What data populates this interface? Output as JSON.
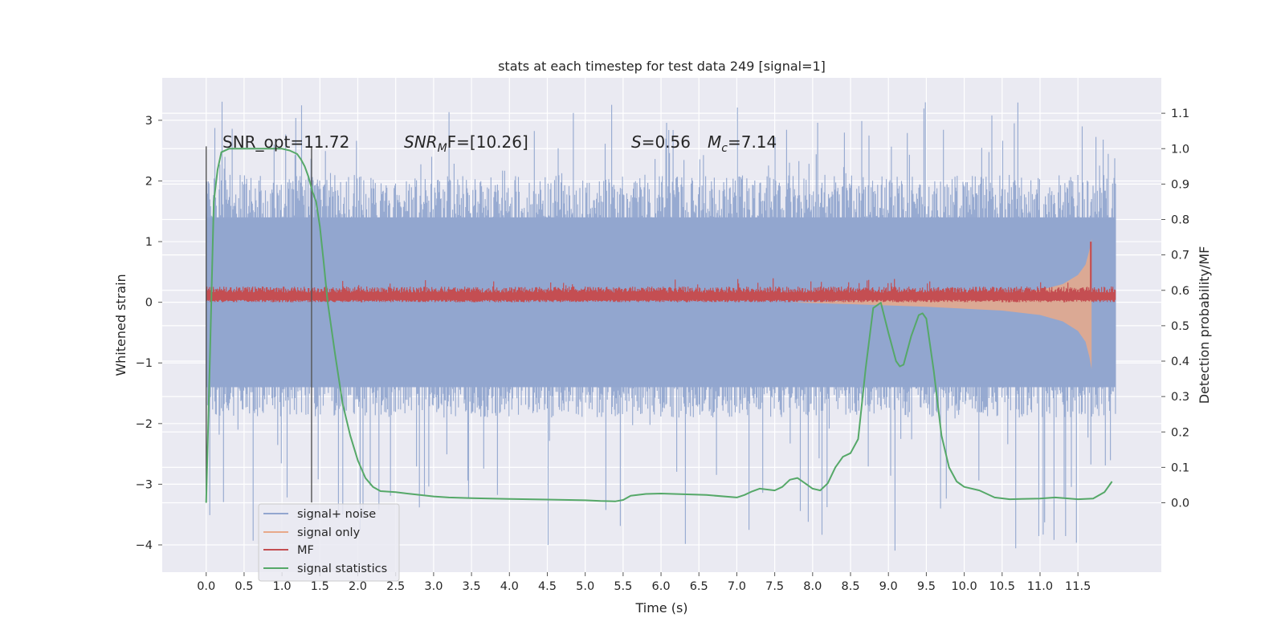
{
  "chart_data": {
    "type": "line",
    "title": "stats at each timestep for test data 249 [signal=1]",
    "xlabel": "Time (s)",
    "ylabel": "Whitened strain",
    "ylabel_right": "Detection probability/MF",
    "xlim": [
      -0.58,
      12.6
    ],
    "ylim": [
      -4.45,
      3.7
    ],
    "ylim_right": [
      -0.196,
      1.2
    ],
    "xticks": [
      "0.0",
      "0.5",
      "1.0",
      "1.5",
      "2.0",
      "2.5",
      "3.0",
      "3.5",
      "4.0",
      "4.5",
      "5.0",
      "5.5",
      "6.0",
      "6.5",
      "7.0",
      "7.5",
      "8.0",
      "8.5",
      "9.0",
      "9.5",
      "10.0",
      "10.5",
      "11.0",
      "11.5"
    ],
    "yticks_left": [
      "3",
      "2",
      "1",
      "0",
      "−1",
      "−2",
      "−3",
      "−4"
    ],
    "yticks_right": [
      "1.1",
      "1.0",
      "0.9",
      "0.8",
      "0.7",
      "0.6",
      "0.5",
      "0.4",
      "0.3",
      "0.2",
      "0.1",
      "0.0"
    ],
    "grid": true,
    "legend_position": "lower-left",
    "annotations": {
      "snr_opt": "SNR_opt=11.72",
      "snr_mf_base": "SNR",
      "snr_mf_sub": "M",
      "snr_mf_rest": "F=[10.26]",
      "s_sym": "S",
      "s_val": "=0.56",
      "mc_sym": "M",
      "mc_sub": "c",
      "mc_val": "=7.14"
    },
    "vlines_x": [
      0.0,
      1.39
    ],
    "noise_band": {
      "x_range": [
        0.0,
        12.0
      ],
      "typical_envelope": [
        -1.9,
        2.1
      ],
      "extreme_range": [
        -4.1,
        3.35
      ]
    },
    "series": [
      {
        "name": "signal+ noise",
        "color": "#92a6cf",
        "axis": "left",
        "kind": "noise band"
      },
      {
        "name": "signal only",
        "color": "#e8a98a",
        "axis": "left",
        "envelope_x": [
          7.7,
          8.5,
          9.5,
          10.5,
          11.0,
          11.3,
          11.5,
          11.6,
          11.65,
          11.68
        ],
        "envelope_y": [
          0.0,
          0.03,
          0.07,
          0.13,
          0.2,
          0.3,
          0.45,
          0.62,
          0.85,
          1.05
        ]
      },
      {
        "name": "MF",
        "color": "#c44e52",
        "axis": "left",
        "kind": "band around 0.12",
        "spike_x": 11.67,
        "spike_y": 1.0
      },
      {
        "name": "signal statistics",
        "color": "#55a868",
        "axis": "right",
        "x": [
          0.0,
          0.05,
          0.1,
          0.15,
          0.2,
          0.3,
          0.5,
          0.8,
          1.0,
          1.1,
          1.2,
          1.25,
          1.3,
          1.35,
          1.4,
          1.45,
          1.5,
          1.55,
          1.6,
          1.7,
          1.8,
          1.9,
          2.0,
          2.1,
          2.2,
          2.3,
          2.5,
          2.7,
          3.0,
          3.2,
          3.5,
          4.0,
          4.5,
          5.0,
          5.2,
          5.4,
          5.5,
          5.6,
          5.8,
          6.0,
          6.3,
          6.6,
          7.0,
          7.1,
          7.2,
          7.3,
          7.5,
          7.6,
          7.7,
          7.8,
          7.9,
          8.0,
          8.1,
          8.2,
          8.3,
          8.4,
          8.5,
          8.6,
          8.7,
          8.8,
          8.9,
          9.0,
          9.1,
          9.15,
          9.2,
          9.3,
          9.4,
          9.45,
          9.5,
          9.6,
          9.7,
          9.8,
          9.9,
          10.0,
          10.2,
          10.4,
          10.6,
          11.0,
          11.2,
          11.5,
          11.7,
          11.85,
          11.95
        ],
        "y": [
          0.0,
          0.42,
          0.85,
          0.94,
          0.99,
          1.0,
          1.0,
          1.0,
          1.0,
          0.995,
          0.985,
          0.97,
          0.95,
          0.92,
          0.88,
          0.85,
          0.78,
          0.68,
          0.57,
          0.42,
          0.28,
          0.19,
          0.12,
          0.07,
          0.045,
          0.033,
          0.03,
          0.025,
          0.018,
          0.015,
          0.013,
          0.011,
          0.009,
          0.007,
          0.005,
          0.004,
          0.008,
          0.02,
          0.025,
          0.026,
          0.024,
          0.022,
          0.015,
          0.022,
          0.032,
          0.04,
          0.035,
          0.045,
          0.065,
          0.07,
          0.055,
          0.04,
          0.035,
          0.055,
          0.1,
          0.13,
          0.14,
          0.18,
          0.38,
          0.55,
          0.565,
          0.48,
          0.4,
          0.385,
          0.39,
          0.47,
          0.53,
          0.535,
          0.52,
          0.37,
          0.19,
          0.1,
          0.06,
          0.045,
          0.035,
          0.015,
          0.01,
          0.012,
          0.015,
          0.01,
          0.012,
          0.03,
          0.06
        ]
      }
    ]
  }
}
